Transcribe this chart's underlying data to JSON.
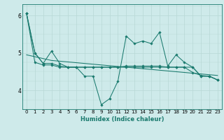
{
  "xlabel": "Humidex (Indice chaleur)",
  "bg_color": "#ceeaea",
  "line_color": "#1a7a6e",
  "grid_color": "#b8d8d5",
  "xlim": [
    -0.5,
    23.5
  ],
  "ylim": [
    3.5,
    6.3
  ],
  "yticks": [
    4,
    5,
    6
  ],
  "xticks": [
    0,
    1,
    2,
    3,
    4,
    5,
    6,
    7,
    8,
    9,
    10,
    11,
    12,
    13,
    14,
    15,
    16,
    17,
    18,
    19,
    20,
    21,
    22,
    23
  ],
  "line1_x": [
    0,
    1,
    2,
    3,
    4,
    5,
    6,
    7,
    8,
    9,
    10,
    11,
    12,
    13,
    14,
    15,
    16,
    17,
    18,
    19,
    20,
    21,
    22,
    23
  ],
  "line1_y": [
    6.05,
    5.0,
    4.72,
    5.05,
    4.72,
    4.62,
    4.62,
    4.38,
    4.38,
    3.62,
    3.78,
    4.25,
    5.45,
    5.25,
    5.32,
    5.25,
    5.55,
    4.65,
    4.95,
    4.75,
    4.62,
    4.38,
    4.38,
    4.28
  ],
  "line2_x": [
    0,
    1,
    2,
    3,
    4,
    5,
    6,
    7,
    8,
    9,
    10,
    11,
    12,
    13,
    14,
    15,
    16,
    17,
    18,
    19,
    20,
    21,
    22,
    23
  ],
  "line2_y": [
    6.05,
    5.0,
    4.72,
    4.72,
    4.65,
    4.62,
    4.62,
    4.62,
    4.62,
    4.62,
    4.62,
    4.62,
    4.65,
    4.65,
    4.65,
    4.65,
    4.65,
    4.62,
    4.62,
    4.62,
    4.48,
    4.4,
    4.38,
    4.28
  ],
  "line3_x": [
    0,
    1,
    2,
    3,
    4,
    5,
    6,
    7,
    8,
    9,
    10,
    11,
    12,
    13,
    14,
    15,
    16,
    17,
    18,
    19,
    20,
    21,
    22,
    23
  ],
  "line3_y": [
    6.05,
    4.75,
    4.68,
    4.68,
    4.62,
    4.62,
    4.62,
    4.62,
    4.62,
    4.62,
    4.62,
    4.62,
    4.62,
    4.62,
    4.62,
    4.62,
    4.62,
    4.62,
    4.62,
    4.62,
    4.62,
    4.38,
    4.38,
    4.28
  ],
  "line4_x": [
    0,
    1,
    2,
    3,
    4,
    5,
    6,
    7,
    8,
    9,
    10,
    11,
    12,
    13,
    14,
    15,
    16,
    17,
    18,
    19,
    20,
    21,
    22,
    23
  ],
  "line4_y": [
    4.95,
    4.9,
    4.85,
    4.8,
    4.78,
    4.76,
    4.74,
    4.72,
    4.7,
    4.68,
    4.66,
    4.64,
    4.62,
    4.6,
    4.58,
    4.56,
    4.54,
    4.52,
    4.5,
    4.48,
    4.46,
    4.44,
    4.42,
    4.4
  ]
}
